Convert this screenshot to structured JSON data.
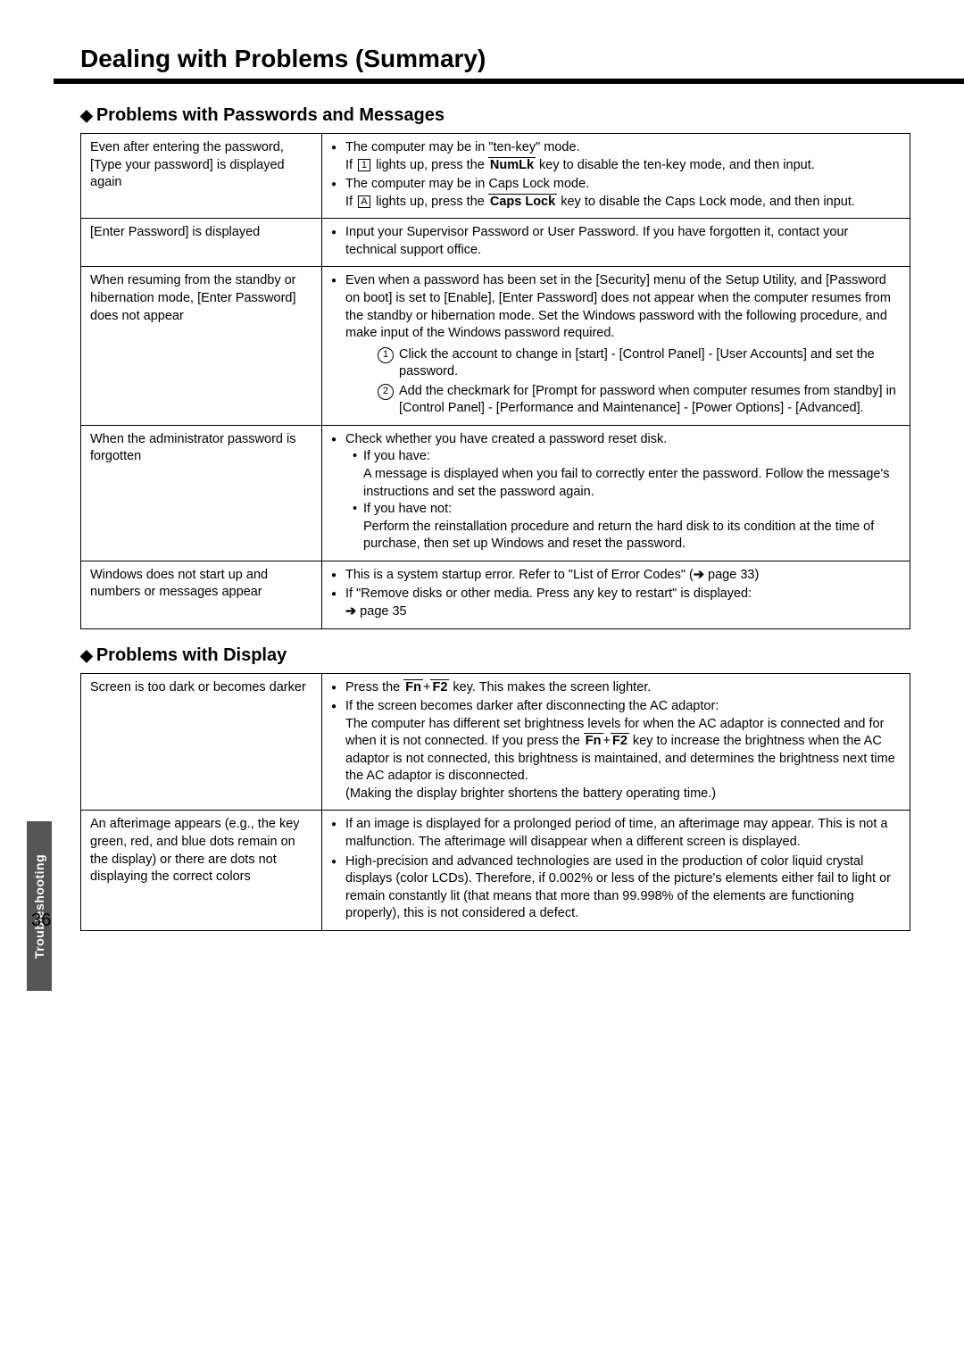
{
  "page": {
    "title": "Dealing with Problems (Summary)",
    "number": "36",
    "side_tab": "Troubleshooting"
  },
  "sections": {
    "passwords": {
      "heading": "Problems with Passwords and Messages",
      "rows": {
        "r1": {
          "problem": "Even after entering the password, [Type your password] is displayed again",
          "b1": "The computer may be in \"ten-key\" mode.",
          "b1_sub_a": "If ",
          "b1_sub_b": " lights up, press the ",
          "b1_key": "NumLk",
          "b1_sub_c": " key to disable the ten-key mode, and then input.",
          "b2": "The computer may be in Caps Lock mode.",
          "b2_sub_a": "If ",
          "b2_sub_b": " lights up, press the ",
          "b2_key": "Caps Lock",
          "b2_sub_c": " key to disable the Caps Lock mode, and then input."
        },
        "r2": {
          "problem": "[Enter Password] is displayed",
          "b1": "Input your Supervisor Password or User Password. If you have forgotten it, contact your technical support office."
        },
        "r3": {
          "problem": "When resuming from the standby or hibernation mode, [Enter Password] does not appear",
          "b1": "Even when a password has been set in the [Security] menu of the Setup Utility, and [Password on boot] is set to [Enable], [Enter Password] does not appear when the computer resumes from the standby or hibernation mode. Set the Windows password with the following procedure, and make input of the Windows password required.",
          "step1": "Click the account to change in [start] - [Control Panel] - [User Accounts] and set the password.",
          "step2": "Add the checkmark for [Prompt for password when computer resumes from standby] in [Control Panel] - [Performance and Maintenance] - [Power Options] - [Advanced]."
        },
        "r4": {
          "problem": "When the administrator password is forgotten",
          "b1": "Check whether you have created a password reset disk.",
          "have_label": "If you have:",
          "have_text": "A message is displayed when you fail to correctly enter the password. Follow the message's instructions and set the password again.",
          "havenot_label": "If you have not:",
          "havenot_text": "Perform the reinstallation procedure and return the hard disk to its condition at the time of purchase, then set up Windows and reset the password."
        },
        "r5": {
          "problem": "Windows does not start up and numbers or messages appear",
          "b1_a": "This is a system startup error. Refer to \"List of Error Codes\" (",
          "b1_b": " page 33)",
          "b2": "If \"Remove disks or other media. Press any key to restart\" is displayed:",
          "b2_sub": " page 35"
        }
      }
    },
    "display": {
      "heading": "Problems with Display",
      "rows": {
        "r1": {
          "problem": "Screen is too dark or becomes darker",
          "b1_a": "Press the ",
          "b1_key1": "Fn",
          "b1_plus": "+",
          "b1_key2": "F2",
          "b1_b": " key. This makes the screen lighter.",
          "b2": "If the screen becomes darker after disconnecting the AC adaptor:",
          "b2_sub_a": "The computer has different set brightness levels for when the AC adaptor is connected and for when it is not connected. If you press the ",
          "b2_key1": "Fn",
          "b2_plus": "+",
          "b2_key2": "F2",
          "b2_sub_b": " key to increase the brightness when the AC adaptor is not connected, this brightness is maintained, and determines the brightness next time the AC adaptor is disconnected.",
          "b2_note": "(Making the display brighter shortens the battery operating time.)"
        },
        "r2": {
          "problem": "An afterimage appears (e.g., the key green, red, and blue dots remain on the display) or there are dots not displaying the correct colors",
          "b1": "If an image is displayed for a prolonged period of time, an afterimage may appear. This is not a malfunction. The afterimage will disappear when a different screen is displayed.",
          "b2": "High-precision and advanced technologies are used in the production of color liquid crystal displays (color LCDs). Therefore, if 0.002% or less of the picture's elements either fail to light or remain constantly lit (that means that more than 99.998% of the elements are functioning properly), this is not considered a defect."
        }
      }
    }
  },
  "icons": {
    "numlk_led": "1",
    "caps_led": "A",
    "arrow": "➔"
  }
}
